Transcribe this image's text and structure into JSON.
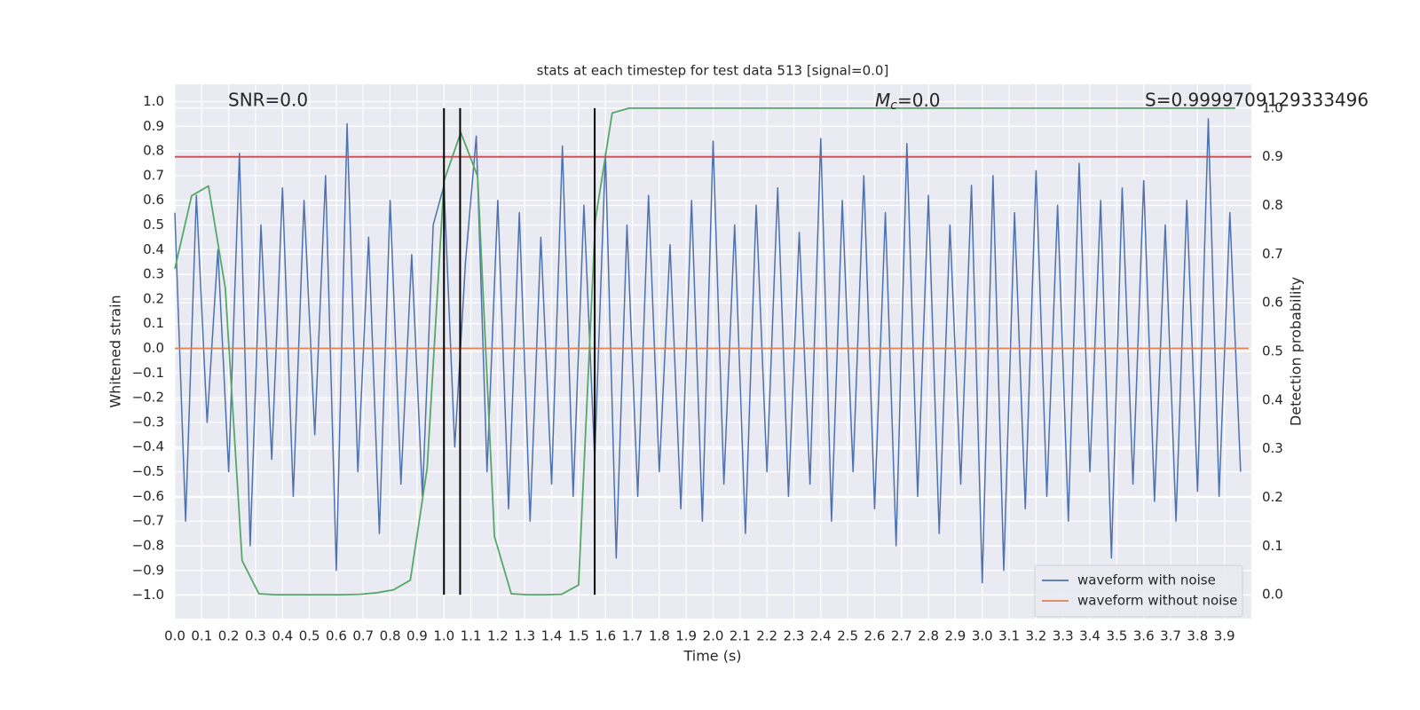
{
  "chart_data": {
    "type": "line",
    "title": "stats at each timestep for test data 513 [signal=0.0]",
    "xlabel": "Time (s)",
    "ylabel": "Whitened strain",
    "y2label": "Detection probability",
    "annotations": [
      {
        "text": "SNR=0.0"
      },
      {
        "symbol": "M",
        "subscript": "c",
        "text": "=0.0"
      },
      {
        "text": "S=0.9999709129333496"
      }
    ],
    "xlim": [
      0,
      4.0
    ],
    "ylim": [
      -1.095,
      1.07
    ],
    "y2lim": [
      -0.049,
      1.049
    ],
    "grid": true,
    "legend": "lower right",
    "xticks": [
      {
        "value": 0,
        "label": "0.0"
      },
      {
        "value": 0.1,
        "label": "0.1"
      },
      {
        "value": 0.2,
        "label": "0.2"
      },
      {
        "value": 0.3,
        "label": "0.3"
      },
      {
        "value": 0.4,
        "label": "0.4"
      },
      {
        "value": 0.5,
        "label": "0.5"
      },
      {
        "value": 0.6,
        "label": "0.6"
      },
      {
        "value": 0.7,
        "label": "0.7"
      },
      {
        "value": 0.8,
        "label": "0.8"
      },
      {
        "value": 0.9,
        "label": "0.9"
      },
      {
        "value": 1,
        "label": "1.0"
      },
      {
        "value": 1.1,
        "label": "1.1"
      },
      {
        "value": 1.2,
        "label": "1.2"
      },
      {
        "value": 1.3,
        "label": "1.3"
      },
      {
        "value": 1.4,
        "label": "1.4"
      },
      {
        "value": 1.5,
        "label": "1.5"
      },
      {
        "value": 1.6,
        "label": "1.6"
      },
      {
        "value": 1.7,
        "label": "1.7"
      },
      {
        "value": 1.8,
        "label": "1.8"
      },
      {
        "value": 1.9,
        "label": "1.9"
      },
      {
        "value": 2,
        "label": "2.0"
      },
      {
        "value": 2.1,
        "label": "2.1"
      },
      {
        "value": 2.2,
        "label": "2.2"
      },
      {
        "value": 2.3,
        "label": "2.3"
      },
      {
        "value": 2.4,
        "label": "2.4"
      },
      {
        "value": 2.5,
        "label": "2.5"
      },
      {
        "value": 2.6,
        "label": "2.6"
      },
      {
        "value": 2.7,
        "label": "2.7"
      },
      {
        "value": 2.8,
        "label": "2.8"
      },
      {
        "value": 2.9,
        "label": "2.9"
      },
      {
        "value": 3,
        "label": "3.0"
      },
      {
        "value": 3.1,
        "label": "3.1"
      },
      {
        "value": 3.2,
        "label": "3.2"
      },
      {
        "value": 3.3,
        "label": "3.3"
      },
      {
        "value": 3.4,
        "label": "3.4"
      },
      {
        "value": 3.5,
        "label": "3.5"
      },
      {
        "value": 3.6,
        "label": "3.6"
      },
      {
        "value": 3.7,
        "label": "3.7"
      },
      {
        "value": 3.8,
        "label": "3.8"
      },
      {
        "value": 3.9,
        "label": "3.9"
      }
    ],
    "yticks": [
      {
        "value": -1,
        "label": "−1.0"
      },
      {
        "value": -0.9,
        "label": "−0.9"
      },
      {
        "value": -0.8,
        "label": "−0.8"
      },
      {
        "value": -0.7,
        "label": "−0.7"
      },
      {
        "value": -0.6,
        "label": "−0.6"
      },
      {
        "value": -0.5,
        "label": "−0.5"
      },
      {
        "value": -0.4,
        "label": "−0.4"
      },
      {
        "value": -0.3,
        "label": "−0.3"
      },
      {
        "value": -0.2,
        "label": "−0.2"
      },
      {
        "value": -0.1,
        "label": "−0.1"
      },
      {
        "value": 0,
        "label": "0.0"
      },
      {
        "value": 0.1,
        "label": "0.1"
      },
      {
        "value": 0.2,
        "label": "0.2"
      },
      {
        "value": 0.3,
        "label": "0.3"
      },
      {
        "value": 0.4,
        "label": "0.4"
      },
      {
        "value": 0.5,
        "label": "0.5"
      },
      {
        "value": 0.6,
        "label": "0.6"
      },
      {
        "value": 0.7,
        "label": "0.7"
      },
      {
        "value": 0.8,
        "label": "0.8"
      },
      {
        "value": 0.9,
        "label": "0.9"
      },
      {
        "value": 1,
        "label": "1.0"
      }
    ],
    "y2ticks": [
      {
        "value": 0,
        "label": "0.0"
      },
      {
        "value": 0.1,
        "label": "0.1"
      },
      {
        "value": 0.2,
        "label": "0.2"
      },
      {
        "value": 0.3,
        "label": "0.3"
      },
      {
        "value": 0.4,
        "label": "0.4"
      },
      {
        "value": 0.5,
        "label": "0.5"
      },
      {
        "value": 0.6,
        "label": "0.6"
      },
      {
        "value": 0.7,
        "label": "0.7"
      },
      {
        "value": 0.8,
        "label": "0.8"
      },
      {
        "value": 0.9,
        "label": "0.9"
      },
      {
        "value": 1,
        "label": "1.0"
      }
    ],
    "series": [
      {
        "name": "waveform with noise",
        "color": "#4c72b0",
        "x": [
          0,
          0.04,
          0.08,
          0.12,
          0.16,
          0.2,
          0.24,
          0.28,
          0.32,
          0.36,
          0.4,
          0.44,
          0.48,
          0.52,
          0.56,
          0.6,
          0.64,
          0.68,
          0.72,
          0.76,
          0.8,
          0.84,
          0.88,
          0.92,
          0.96,
          1,
          1.04,
          1.08,
          1.12,
          1.16,
          1.2,
          1.24,
          1.28,
          1.32,
          1.36,
          1.4,
          1.44,
          1.48,
          1.52,
          1.56,
          1.6,
          1.64,
          1.68,
          1.72,
          1.76,
          1.8,
          1.84,
          1.88,
          1.92,
          1.96,
          2,
          2.04,
          2.08,
          2.12,
          2.16,
          2.2,
          2.24,
          2.28,
          2.32,
          2.36,
          2.4,
          2.44,
          2.48,
          2.52,
          2.56,
          2.6,
          2.64,
          2.68,
          2.72,
          2.76,
          2.8,
          2.84,
          2.88,
          2.92,
          2.96,
          3,
          3.04,
          3.08,
          3.12,
          3.16,
          3.2,
          3.24,
          3.28,
          3.32,
          3.36,
          3.4,
          3.44,
          3.48,
          3.52,
          3.56,
          3.6,
          3.64,
          3.68,
          3.72,
          3.76,
          3.8,
          3.84,
          3.88,
          3.92,
          3.96
        ],
        "values": [
          0.55,
          -0.7,
          0.62,
          -0.3,
          0.4,
          -0.5,
          0.79,
          -0.8,
          0.5,
          -0.45,
          0.65,
          -0.6,
          0.6,
          -0.35,
          0.7,
          -0.9,
          0.91,
          -0.5,
          0.45,
          -0.75,
          0.6,
          -0.55,
          0.38,
          -0.6,
          0.5,
          0.66,
          -0.4,
          0.35,
          0.86,
          -0.5,
          0.6,
          -0.65,
          0.55,
          -0.7,
          0.45,
          -0.55,
          0.82,
          -0.6,
          0.58,
          -0.45,
          0.79,
          -0.85,
          0.5,
          -0.6,
          0.62,
          -0.5,
          0.42,
          -0.65,
          0.6,
          -0.7,
          0.84,
          -0.55,
          0.5,
          -0.75,
          0.58,
          -0.5,
          0.65,
          -0.6,
          0.47,
          -0.55,
          0.85,
          -0.7,
          0.6,
          -0.5,
          0.7,
          -0.65,
          0.55,
          -0.8,
          0.83,
          -0.6,
          0.62,
          -0.75,
          0.5,
          -0.55,
          0.66,
          -0.95,
          0.7,
          -0.9,
          0.55,
          -0.65,
          0.72,
          -0.6,
          0.58,
          -0.7,
          0.75,
          -0.5,
          0.6,
          -0.85,
          0.65,
          -0.55,
          0.68,
          -0.62,
          0.5,
          -0.7,
          0.6,
          -0.58,
          0.93,
          -0.6,
          0.55,
          -0.5
        ]
      },
      {
        "name": "waveform without noise",
        "color": "#dd8452",
        "x": [
          0,
          3.99
        ],
        "values": [
          0,
          0
        ]
      },
      {
        "color": "#55a868",
        "axis": "y2",
        "x": [
          0,
          0.0625,
          0.125,
          0.1875,
          0.25,
          0.3125,
          0.375,
          0.4375,
          0.5,
          0.5625,
          0.625,
          0.6875,
          0.75,
          0.8125,
          0.875,
          0.9375,
          1,
          1.0625,
          1.125,
          1.1875,
          1.25,
          1.3125,
          1.375,
          1.4375,
          1.5,
          1.5625,
          1.625,
          1.6875,
          2.5,
          3.94
        ],
        "values": [
          0.67,
          0.82,
          0.84,
          0.63,
          0.07,
          0.002,
          0,
          0,
          0,
          0,
          0,
          0.001,
          0.004,
          0.01,
          0.03,
          0.26,
          0.85,
          0.95,
          0.86,
          0.12,
          0.002,
          0,
          0,
          0.001,
          0.02,
          0.77,
          0.99,
          1,
          1,
          1
        ]
      }
    ],
    "hline": {
      "value": 0.9,
      "axis": "y2",
      "color": "#c44e52"
    },
    "vlines": {
      "x": [
        1.0,
        1.06,
        1.56
      ],
      "span": [
        0,
        1
      ],
      "color": "#000000"
    }
  }
}
